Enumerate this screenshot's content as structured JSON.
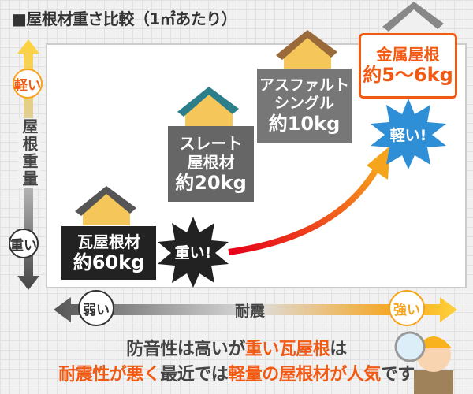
{
  "title": "■屋根材重さ比較（1㎡あたり）",
  "weight_axis": {
    "light": "軽い",
    "label": "屋根重量",
    "heavy": "重い"
  },
  "quake_axis": {
    "weak": "弱い",
    "label": "耐震",
    "strong": "強い"
  },
  "materials": [
    {
      "name": "瓦屋根材",
      "weight": "約60kg"
    },
    {
      "name": "スレート屋根材",
      "name_lines": [
        "スレート",
        "屋根材"
      ],
      "weight": "約20kg"
    },
    {
      "name": "アスファルトシングル",
      "name_lines": [
        "アスファルト",
        "シングル"
      ],
      "weight": "約10kg"
    },
    {
      "name": "金属屋根",
      "weight": "約5～6kg"
    }
  ],
  "badges": {
    "heavy": "重い!",
    "light": "軽い!"
  },
  "caption": {
    "line1": [
      {
        "text": "防音性は高いが",
        "accent": false
      },
      {
        "text": "重い瓦屋根",
        "accent": true
      },
      {
        "text": "は",
        "accent": false
      }
    ],
    "line2": [
      {
        "text": "耐震性が悪く",
        "accent": true
      },
      {
        "text": "最近では",
        "accent": false
      },
      {
        "text": "軽量の屋根材が人気",
        "accent": true
      },
      {
        "text": "です",
        "accent": false
      }
    ]
  },
  "colors": {
    "accent": "#f25a14",
    "orange": "#f7a41d",
    "dark": "#222222",
    "gray": "#666666",
    "blue": "#2f8fd6"
  }
}
